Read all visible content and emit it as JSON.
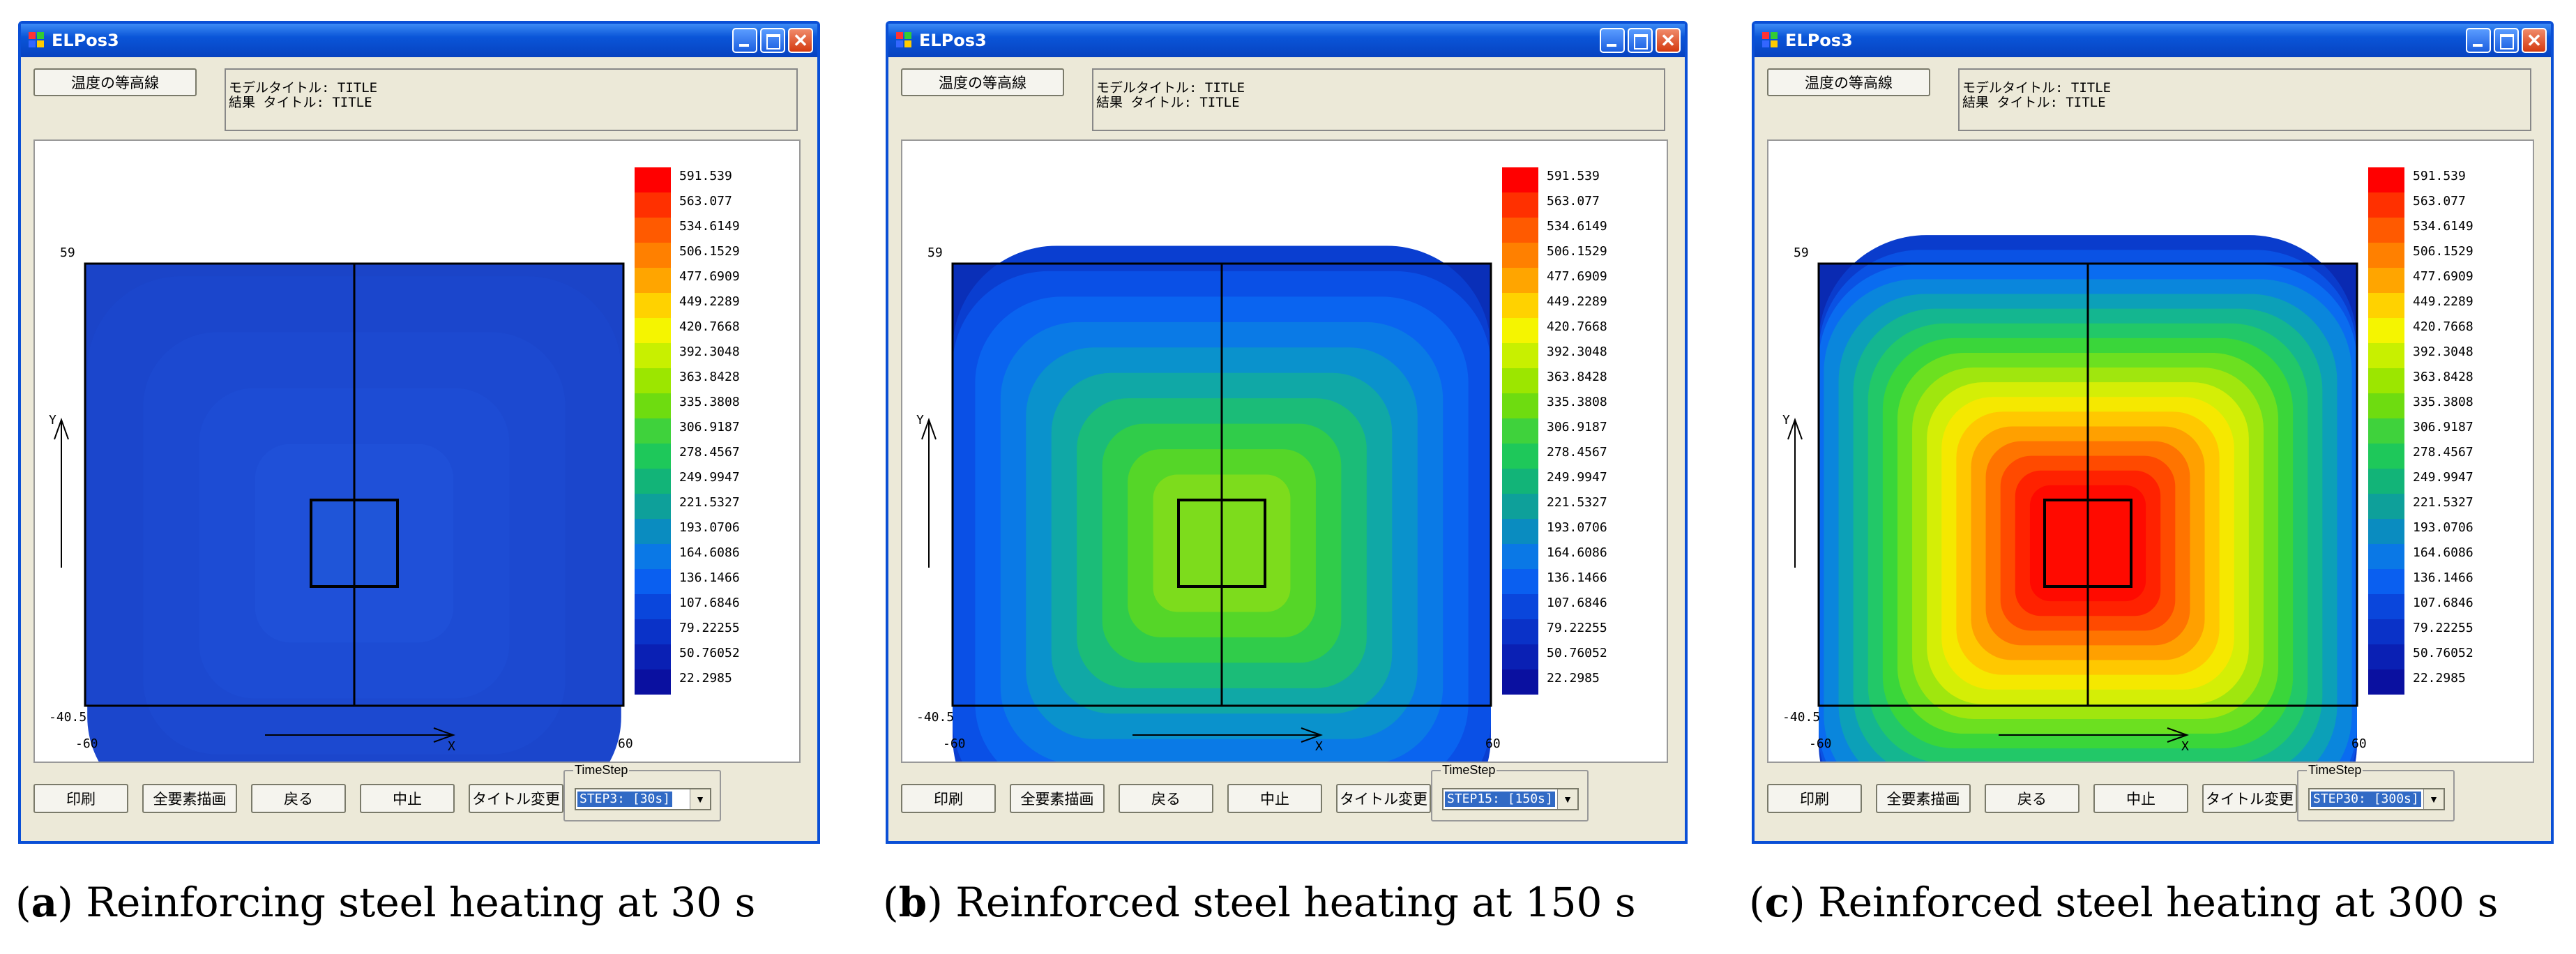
{
  "windows": [
    {
      "title": "ELPos3",
      "contour_button": "温度の等高線",
      "model_title": "モデルタイトル: TITLE",
      "result_title": "結果 タイトル: TITLE",
      "y_max_label": "59",
      "y_min_label": "-40.5",
      "x_min_label": "-60",
      "x_max_label": "60",
      "x_axis_label": "X",
      "y_axis_label": "Y",
      "legend_values": [
        "591.539",
        "563.077",
        "534.6149",
        "506.1529",
        "477.6909",
        "449.2289",
        "420.7668",
        "392.3048",
        "363.8428",
        "335.3808",
        "306.9187",
        "278.4567",
        "249.9947",
        "221.5327",
        "193.0706",
        "164.6086",
        "136.1466",
        "107.6846",
        "79.22255",
        "50.76052",
        "22.2985"
      ],
      "buttons": [
        "印刷",
        "全要素描画",
        "戻る",
        "中止",
        "タイトル変更"
      ],
      "timestep_label": "TimeStep",
      "timestep_value": "STEP3: [30s]",
      "center_color": "#1f55d8",
      "caption_letter": "a",
      "caption_text": "Reinforcing steel heating at 30 s"
    },
    {
      "title": "ELPos3",
      "contour_button": "温度の等高線",
      "model_title": "モデルタイトル: TITLE",
      "result_title": "結果 タイトル: TITLE",
      "y_max_label": "59",
      "y_min_label": "-40.5",
      "x_min_label": "-60",
      "x_max_label": "60",
      "x_axis_label": "X",
      "y_axis_label": "Y",
      "legend_values": [
        "591.539",
        "563.077",
        "534.6149",
        "506.1529",
        "477.6909",
        "449.2289",
        "420.7668",
        "392.3048",
        "363.8428",
        "335.3808",
        "306.9187",
        "278.4567",
        "249.9947",
        "221.5327",
        "193.0706",
        "164.6086",
        "136.1466",
        "107.6846",
        "79.22255",
        "50.76052",
        "22.2985"
      ],
      "buttons": [
        "印刷",
        "全要素描画",
        "戻る",
        "中止",
        "タイトル変更"
      ],
      "timestep_label": "TimeStep",
      "timestep_value": "STEP15: [150s]",
      "center_color": "#7ddc1c",
      "caption_letter": "b",
      "caption_text": "Reinforced steel heating at 150 s"
    },
    {
      "title": "ELPos3",
      "contour_button": "温度の等高線",
      "model_title": "モデルタイトル: TITLE",
      "result_title": "結果 タイトル: TITLE",
      "y_max_label": "59",
      "y_min_label": "-40.5",
      "x_min_label": "-60",
      "x_max_label": "60",
      "x_axis_label": "X",
      "y_axis_label": "Y",
      "legend_values": [
        "591.539",
        "563.077",
        "534.6149",
        "506.1529",
        "477.6909",
        "449.2289",
        "420.7668",
        "392.3048",
        "363.8428",
        "335.3808",
        "306.9187",
        "278.4567",
        "249.9947",
        "221.5327",
        "193.0706",
        "164.6086",
        "136.1466",
        "107.6846",
        "79.22255",
        "50.76052",
        "22.2985"
      ],
      "buttons": [
        "印刷",
        "全要素描画",
        "戻る",
        "中止",
        "タイトル変更"
      ],
      "timestep_label": "TimeStep",
      "timestep_value": "STEP30: [300s]",
      "center_color": "#ff0a00",
      "caption_letter": "c",
      "caption_text": "Reinforced steel heating at 300 s"
    }
  ],
  "legend_colors": [
    "#ff0000",
    "#ff3000",
    "#ff5a00",
    "#ff8000",
    "#ffa500",
    "#ffd200",
    "#f5f500",
    "#c8f000",
    "#9ce600",
    "#6edc10",
    "#3fd23c",
    "#1ec85a",
    "#12b478",
    "#0ea09a",
    "#0a8cc0",
    "#0a78e6",
    "#0a5ff0",
    "#0a46dc",
    "#0a32c8",
    "#0a20b4",
    "#0a10a0"
  ],
  "field_colors_30": [
    "#1b44c8",
    "#1b46cc",
    "#1c49d0",
    "#1d4cd4",
    "#1f50d8"
  ],
  "field_colors_150": [
    "#0a2fb8",
    "#0a3ed0",
    "#0a50e6",
    "#0a64f0",
    "#0a7ae6",
    "#0a92cc",
    "#10a8a6",
    "#1bbc78",
    "#30cc4a",
    "#55d628",
    "#7ddc1c"
  ],
  "field_colors_300": [
    "#0a2ab2",
    "#0a3ccc",
    "#0a52e4",
    "#0a6cf0",
    "#0a86dc",
    "#0ca0b8",
    "#14b690",
    "#22c868",
    "#3ad63a",
    "#6ce020",
    "#a0e60e",
    "#d4ee06",
    "#f5e800",
    "#ffc800",
    "#ffa000",
    "#ff7400",
    "#ff4a00",
    "#ff2200",
    "#ff0a00"
  ]
}
